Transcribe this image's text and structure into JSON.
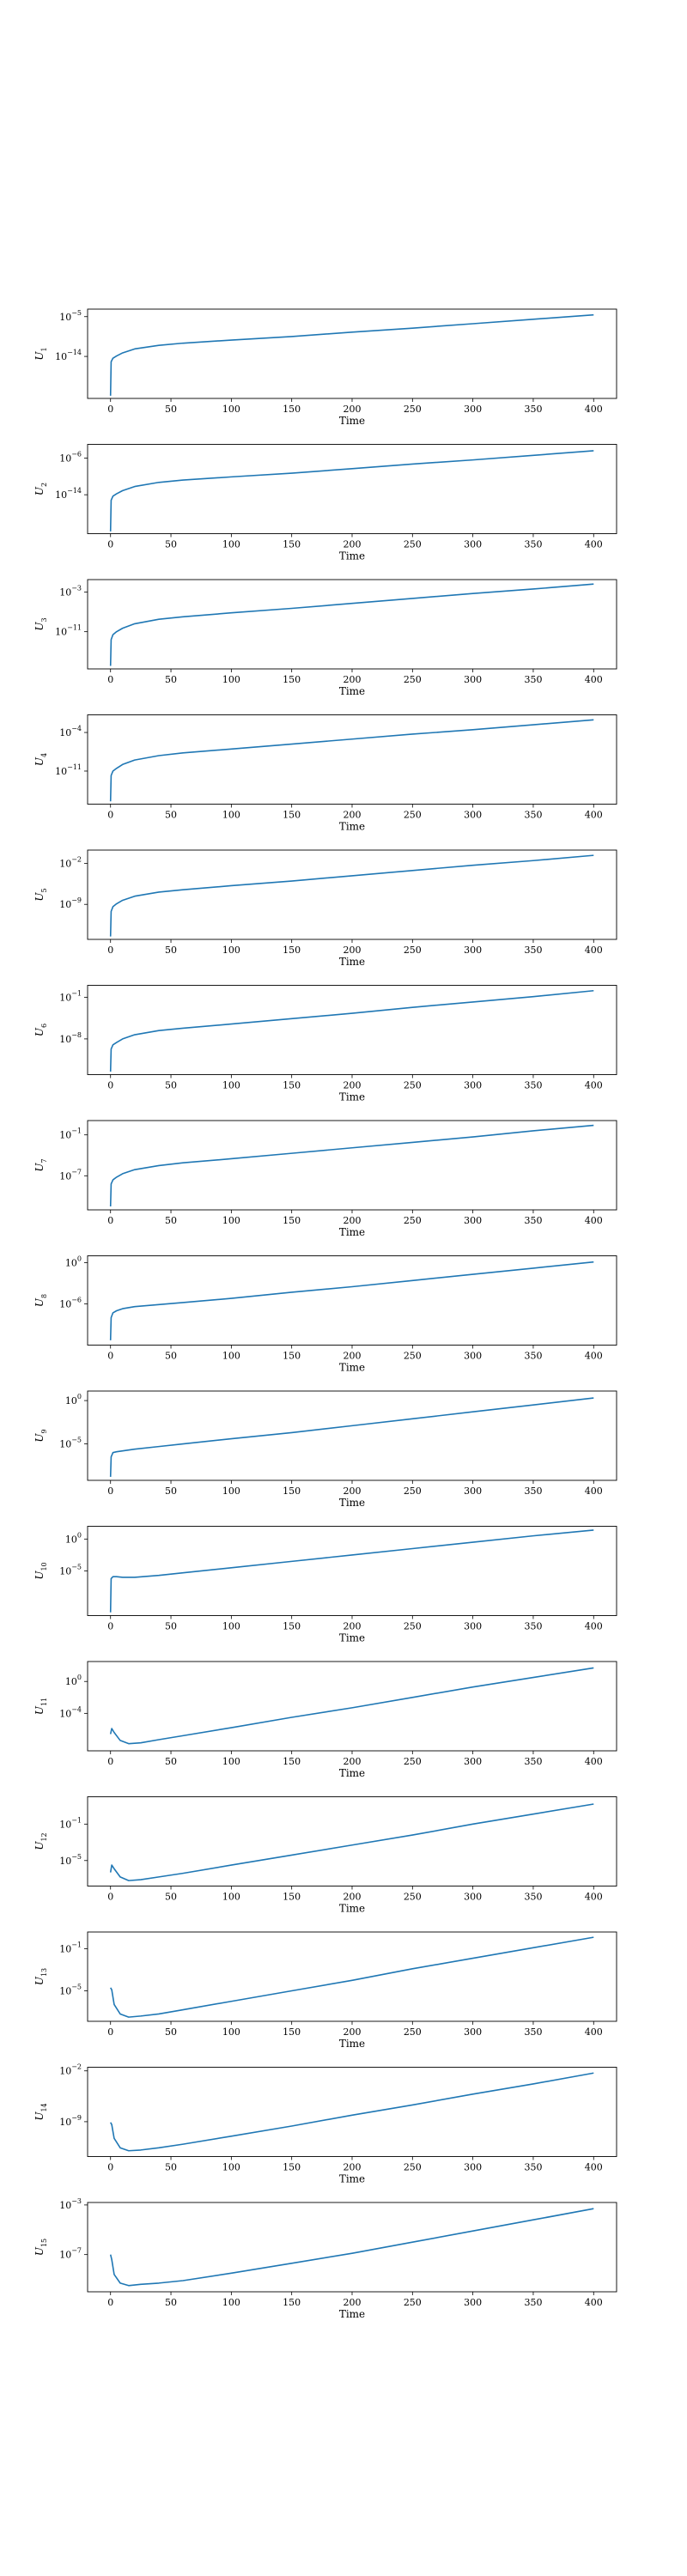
{
  "colors": {
    "line": "#1f77b4",
    "axes": "#000000",
    "background": "#ffffff"
  },
  "chart_data": [
    {
      "type": "line",
      "ylabel_base": "U",
      "ylabel_sub": "1",
      "xlabel": "Time",
      "xlim": [
        -19,
        419
      ],
      "xticks": [
        0,
        50,
        100,
        150,
        200,
        250,
        300,
        350,
        400
      ],
      "yscale": "log",
      "ytick_exps": [
        "-5",
        "-14"
      ],
      "grid": false,
      "series": [
        {
          "color": "#1f77b4",
          "x": [
            0,
            0.5,
            2,
            5,
            10,
            20,
            40,
            60,
            100,
            150,
            200,
            250,
            300,
            350,
            400
          ],
          "log10_y": [
            -22.9,
            -15.2,
            -14.4,
            -13.9,
            -13.2,
            -12.3,
            -11.5,
            -11.0,
            -10.3,
            -9.5,
            -8.5,
            -7.6,
            -6.6,
            -5.6,
            -4.6
          ]
        }
      ]
    },
    {
      "type": "line",
      "ylabel_base": "U",
      "ylabel_sub": "2",
      "xlabel": "Time",
      "xlim": [
        -19,
        419
      ],
      "xticks": [
        0,
        50,
        100,
        150,
        200,
        250,
        300,
        350,
        400
      ],
      "yscale": "log",
      "ytick_exps": [
        "-6",
        "-14"
      ],
      "grid": false,
      "series": [
        {
          "color": "#1f77b4",
          "x": [
            0,
            0.5,
            2,
            5,
            10,
            20,
            40,
            60,
            100,
            150,
            200,
            250,
            300,
            350,
            400
          ],
          "log10_y": [
            -22.0,
            -15.2,
            -14.3,
            -13.8,
            -13.1,
            -12.2,
            -11.3,
            -10.8,
            -10.1,
            -9.3,
            -8.3,
            -7.3,
            -6.4,
            -5.4,
            -4.4
          ]
        }
      ]
    },
    {
      "type": "line",
      "ylabel_base": "U",
      "ylabel_sub": "3",
      "xlabel": "Time",
      "xlim": [
        -19,
        419
      ],
      "xticks": [
        0,
        50,
        100,
        150,
        200,
        250,
        300,
        350,
        400
      ],
      "yscale": "log",
      "ytick_exps": [
        "-3",
        "-11"
      ],
      "grid": false,
      "series": [
        {
          "color": "#1f77b4",
          "x": [
            0,
            0.5,
            2,
            5,
            10,
            20,
            40,
            60,
            100,
            150,
            200,
            250,
            300,
            350,
            400
          ],
          "log10_y": [
            -17.9,
            -12.6,
            -11.6,
            -11.0,
            -10.3,
            -9.4,
            -8.5,
            -8.0,
            -7.2,
            -6.3,
            -5.3,
            -4.3,
            -3.3,
            -2.4,
            -1.4
          ]
        }
      ]
    },
    {
      "type": "line",
      "ylabel_base": "U",
      "ylabel_sub": "4",
      "xlabel": "Time",
      "xlim": [
        -19,
        419
      ],
      "xticks": [
        0,
        50,
        100,
        150,
        200,
        250,
        300,
        350,
        400
      ],
      "yscale": "log",
      "ytick_exps": [
        "-4",
        "-11"
      ],
      "grid": false,
      "series": [
        {
          "color": "#1f77b4",
          "x": [
            0,
            0.5,
            2,
            5,
            10,
            20,
            40,
            60,
            100,
            150,
            200,
            250,
            300,
            350,
            400
          ],
          "log10_y": [
            -16.5,
            -11.8,
            -11.0,
            -10.5,
            -9.8,
            -9.0,
            -8.2,
            -7.7,
            -7.0,
            -6.1,
            -5.2,
            -4.3,
            -3.5,
            -2.6,
            -1.7
          ]
        }
      ]
    },
    {
      "type": "line",
      "ylabel_base": "U",
      "ylabel_sub": "5",
      "xlabel": "Time",
      "xlim": [
        -19,
        419
      ],
      "xticks": [
        0,
        50,
        100,
        150,
        200,
        250,
        300,
        350,
        400
      ],
      "yscale": "log",
      "ytick_exps": [
        "-2",
        "-9"
      ],
      "grid": false,
      "series": [
        {
          "color": "#1f77b4",
          "x": [
            0,
            0.5,
            2,
            5,
            10,
            20,
            40,
            60,
            100,
            150,
            200,
            250,
            300,
            350,
            400
          ],
          "log10_y": [
            -14.5,
            -10.2,
            -9.4,
            -8.9,
            -8.3,
            -7.6,
            -6.9,
            -6.5,
            -5.8,
            -5.0,
            -4.1,
            -3.2,
            -2.3,
            -1.5,
            -0.6
          ]
        }
      ]
    },
    {
      "type": "line",
      "ylabel_base": "U",
      "ylabel_sub": "6",
      "xlabel": "Time",
      "xlim": [
        -19,
        419
      ],
      "xticks": [
        0,
        50,
        100,
        150,
        200,
        250,
        300,
        350,
        400
      ],
      "yscale": "log",
      "ytick_exps": [
        "-1",
        "-8"
      ],
      "grid": false,
      "series": [
        {
          "color": "#1f77b4",
          "x": [
            0,
            0.5,
            2,
            5,
            10,
            20,
            40,
            60,
            100,
            150,
            200,
            250,
            300,
            350,
            400
          ],
          "log10_y": [
            -13.5,
            -9.7,
            -9.0,
            -8.6,
            -8.0,
            -7.3,
            -6.6,
            -6.2,
            -5.5,
            -4.6,
            -3.7,
            -2.7,
            -1.8,
            -0.9,
            0.1
          ]
        }
      ]
    },
    {
      "type": "line",
      "ylabel_base": "U",
      "ylabel_sub": "7",
      "xlabel": "Time",
      "xlim": [
        -19,
        419
      ],
      "xticks": [
        0,
        50,
        100,
        150,
        200,
        250,
        300,
        350,
        400
      ],
      "yscale": "log",
      "ytick_exps": [
        "-1",
        "-7"
      ],
      "grid": false,
      "series": [
        {
          "color": "#1f77b4",
          "x": [
            0,
            0.5,
            2,
            5,
            10,
            20,
            40,
            60,
            100,
            150,
            200,
            250,
            300,
            350,
            400
          ],
          "log10_y": [
            -11.5,
            -8.2,
            -7.6,
            -7.2,
            -6.7,
            -6.1,
            -5.5,
            -5.1,
            -4.5,
            -3.7,
            -2.9,
            -2.1,
            -1.3,
            -0.4,
            0.4
          ]
        }
      ]
    },
    {
      "type": "line",
      "ylabel_base": "U",
      "ylabel_sub": "8",
      "xlabel": "Time",
      "xlim": [
        -19,
        419
      ],
      "xticks": [
        0,
        50,
        100,
        150,
        200,
        250,
        300,
        350,
        400
      ],
      "yscale": "log",
      "ytick_exps": [
        "0",
        "-6"
      ],
      "grid": false,
      "series": [
        {
          "color": "#1f77b4",
          "x": [
            0,
            0.5,
            2,
            5,
            10,
            20,
            40,
            60,
            100,
            150,
            200,
            250,
            300,
            350,
            400
          ],
          "log10_y": [
            -11.3,
            -8.0,
            -7.3,
            -7.0,
            -6.7,
            -6.4,
            -6.1,
            -5.8,
            -5.2,
            -4.3,
            -3.5,
            -2.6,
            -1.7,
            -0.8,
            0.1
          ]
        }
      ]
    },
    {
      "type": "line",
      "ylabel_base": "U",
      "ylabel_sub": "9",
      "xlabel": "Time",
      "xlim": [
        -19,
        419
      ],
      "xticks": [
        0,
        50,
        100,
        150,
        200,
        250,
        300,
        350,
        400
      ],
      "yscale": "log",
      "ytick_exps": [
        "0",
        "-5"
      ],
      "grid": false,
      "series": [
        {
          "color": "#1f77b4",
          "x": [
            0,
            0.5,
            2,
            5,
            10,
            20,
            40,
            60,
            100,
            150,
            200,
            250,
            300,
            350,
            400
          ],
          "log10_y": [
            -8.8,
            -6.5,
            -6.0,
            -5.9,
            -5.8,
            -5.6,
            -5.3,
            -5.0,
            -4.4,
            -3.7,
            -2.9,
            -2.1,
            -1.3,
            -0.5,
            0.3
          ]
        }
      ]
    },
    {
      "type": "line",
      "ylabel_base": "U",
      "ylabel_sub": "10",
      "xlabel": "Time",
      "xlim": [
        -19,
        419
      ],
      "xticks": [
        0,
        50,
        100,
        150,
        200,
        250,
        300,
        350,
        400
      ],
      "yscale": "log",
      "ytick_exps": [
        "0",
        "-5"
      ],
      "grid": false,
      "series": [
        {
          "color": "#1f77b4",
          "x": [
            0,
            0.5,
            2,
            5,
            10,
            20,
            40,
            60,
            100,
            150,
            200,
            250,
            300,
            350,
            400
          ],
          "log10_y": [
            -11.5,
            -6.2,
            -5.9,
            -5.9,
            -6.0,
            -6.0,
            -5.7,
            -5.3,
            -4.5,
            -3.5,
            -2.5,
            -1.5,
            -0.5,
            0.5,
            1.4
          ]
        }
      ]
    },
    {
      "type": "line",
      "ylabel_base": "U",
      "ylabel_sub": "11",
      "xlabel": "Time",
      "xlim": [
        -19,
        419
      ],
      "xticks": [
        0,
        50,
        100,
        150,
        200,
        250,
        300,
        350,
        400
      ],
      "yscale": "log",
      "ytick_exps": [
        "0",
        "-4"
      ],
      "grid": false,
      "series": [
        {
          "color": "#1f77b4",
          "x": [
            0,
            1,
            3,
            8,
            15,
            25,
            40,
            60,
            100,
            150,
            200,
            250,
            300,
            350,
            400
          ],
          "log10_y": [
            -6.6,
            -5.9,
            -6.4,
            -7.4,
            -7.8,
            -7.7,
            -7.3,
            -6.8,
            -5.8,
            -4.5,
            -3.3,
            -2.0,
            -0.7,
            0.5,
            1.7
          ]
        }
      ]
    },
    {
      "type": "line",
      "ylabel_base": "U",
      "ylabel_sub": "12",
      "xlabel": "Time",
      "xlim": [
        -19,
        419
      ],
      "xticks": [
        0,
        50,
        100,
        150,
        200,
        250,
        300,
        350,
        400
      ],
      "yscale": "log",
      "ytick_exps": [
        "-1",
        "-5"
      ],
      "grid": false,
      "series": [
        {
          "color": "#1f77b4",
          "x": [
            0,
            1,
            3,
            8,
            15,
            25,
            40,
            60,
            100,
            150,
            200,
            250,
            300,
            350,
            400
          ],
          "log10_y": [
            -6.3,
            -5.5,
            -5.9,
            -6.8,
            -7.2,
            -7.1,
            -6.8,
            -6.4,
            -5.5,
            -4.4,
            -3.3,
            -2.2,
            -1.0,
            0.1,
            1.2
          ]
        }
      ]
    },
    {
      "type": "line",
      "ylabel_base": "U",
      "ylabel_sub": "13",
      "xlabel": "Time",
      "xlim": [
        -19,
        419
      ],
      "xticks": [
        0,
        50,
        100,
        150,
        200,
        250,
        300,
        350,
        400
      ],
      "yscale": "log",
      "ytick_exps": [
        "-1",
        "-5"
      ],
      "grid": false,
      "series": [
        {
          "color": "#1f77b4",
          "x": [
            0,
            1,
            3,
            8,
            15,
            25,
            40,
            60,
            100,
            150,
            200,
            250,
            300,
            350,
            400
          ],
          "log10_y": [
            -4.7,
            -4.9,
            -6.3,
            -7.2,
            -7.5,
            -7.4,
            -7.2,
            -6.8,
            -6.0,
            -5.0,
            -4.0,
            -2.9,
            -1.9,
            -0.9,
            0.1
          ]
        }
      ]
    },
    {
      "type": "line",
      "ylabel_base": "U",
      "ylabel_sub": "14",
      "xlabel": "Time",
      "xlim": [
        -19,
        419
      ],
      "xticks": [
        0,
        50,
        100,
        150,
        200,
        250,
        300,
        350,
        400
      ],
      "yscale": "log",
      "ytick_exps": [
        "-2",
        "-9"
      ],
      "grid": false,
      "series": [
        {
          "color": "#1f77b4",
          "x": [
            0,
            1,
            3,
            8,
            15,
            25,
            40,
            60,
            100,
            150,
            200,
            250,
            300,
            350,
            400
          ],
          "log10_y": [
            -9.1,
            -9.4,
            -11.3,
            -12.6,
            -13.0,
            -12.9,
            -12.6,
            -12.1,
            -11.0,
            -9.6,
            -8.1,
            -6.7,
            -5.2,
            -3.8,
            -2.3
          ]
        }
      ]
    },
    {
      "type": "line",
      "ylabel_base": "U",
      "ylabel_sub": "15",
      "xlabel": "Time",
      "xlim": [
        -19,
        419
      ],
      "xticks": [
        0,
        50,
        100,
        150,
        200,
        250,
        300,
        350,
        400
      ],
      "yscale": "log",
      "ytick_exps": [
        "-3",
        "-7"
      ],
      "grid": false,
      "series": [
        {
          "color": "#1f77b4",
          "x": [
            0,
            1,
            3,
            8,
            15,
            25,
            40,
            60,
            100,
            150,
            200,
            250,
            300,
            350,
            400
          ],
          "log10_y": [
            -7.0,
            -7.4,
            -8.6,
            -9.3,
            -9.5,
            -9.4,
            -9.3,
            -9.1,
            -8.5,
            -7.7,
            -6.9,
            -6.0,
            -5.1,
            -4.2,
            -3.3
          ]
        }
      ]
    }
  ]
}
